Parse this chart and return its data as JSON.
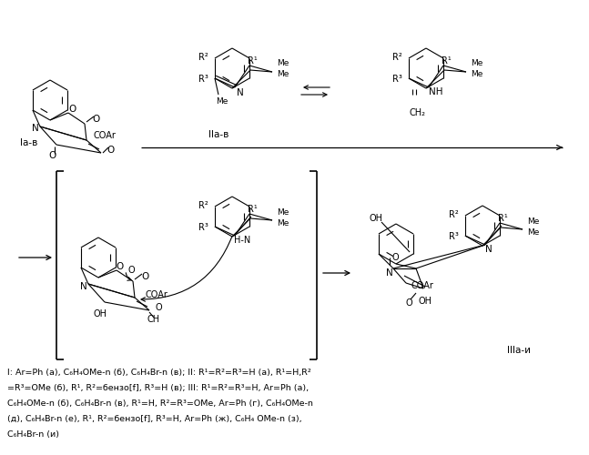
{
  "bg_color": "#ffffff",
  "line_color": "#000000",
  "caption_line1": "I: Ar=Ph (a), C₆H₄OMe-n (б), C₆H₄Br-n (в); II: R¹=R²=R³=H (a), R¹=H,R²",
  "caption_line2": "=R³=OMe (б), R¹, R²=бензо[f], R³=H (в); III: R¹=R²=R³=H, Ar=Ph (a),",
  "caption_line3": "C₆H₄OMe-n (б), C₆H₄Br-n (в), R¹=H, R²=R³=OMe, Ar=Ph (г), C₆H₄OMe-n",
  "caption_line4": "(д), C₆H₄Br-n (е), R¹, R²=бензо[f], R³=H, Ar=Ph (ж), C₆H₄ OMe-n (з),",
  "caption_line5": "C₆H₄Br-n (и)"
}
